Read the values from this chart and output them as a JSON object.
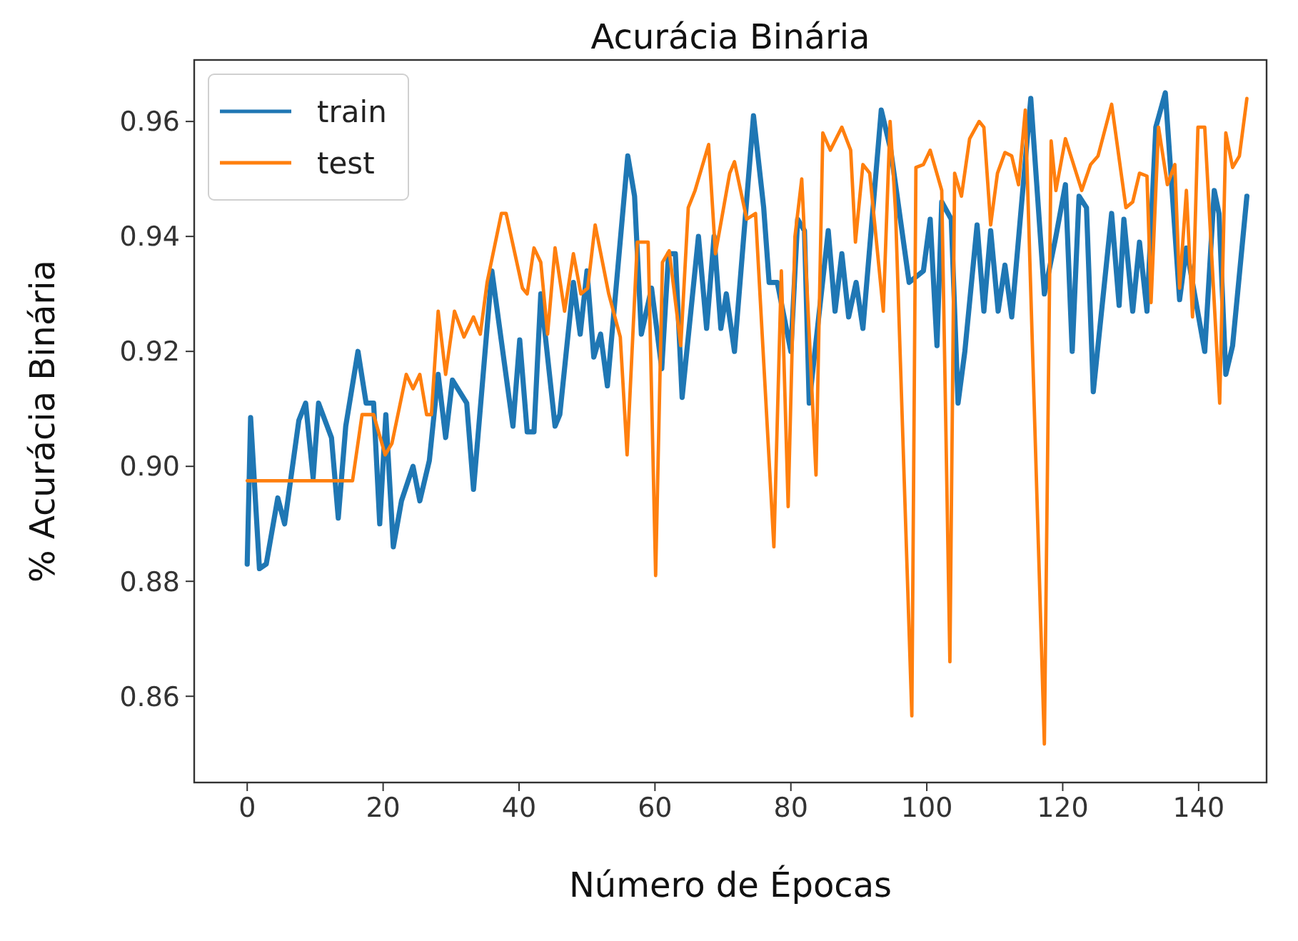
{
  "chart_data": {
    "type": "line",
    "title": "Acurácia Binária",
    "xlabel": "Número de Épocas",
    "ylabel": "% Acurácia Binária",
    "xlim": [
      -7.8,
      150
    ],
    "xticks": [
      0,
      20,
      40,
      60,
      80,
      100,
      120,
      140
    ],
    "ylim": [
      0.845,
      0.9707
    ],
    "yticks": [
      {
        "value": 0.86,
        "label": "0.86"
      },
      {
        "value": 0.88,
        "label": "0.88"
      },
      {
        "value": 0.9,
        "label": "0.90"
      },
      {
        "value": 0.92,
        "label": "0.92"
      },
      {
        "value": 0.94,
        "label": "0.94"
      },
      {
        "value": 0.96,
        "label": "0.96"
      }
    ],
    "grid": false,
    "legend": "top left",
    "series": [
      {
        "name": "train",
        "color": "#1f77b4",
        "x": [
          0,
          0.5,
          1.8,
          2.8,
          4.5,
          5.5,
          7.6,
          8.6,
          9.7,
          10.5,
          12.4,
          13.4,
          14.5,
          16.3,
          17.5,
          18.6,
          19.5,
          20.4,
          21.5,
          22.7,
          24.4,
          25.4,
          26.8,
          28.1,
          29.2,
          30.2,
          32.3,
          33.3,
          36,
          39.1,
          40.1,
          41.2,
          42.2,
          43.2,
          45.3,
          46,
          48,
          49,
          50,
          51,
          52,
          53,
          56,
          57,
          58,
          59.5,
          61,
          62,
          63,
          64,
          66.4,
          67.6,
          68.7,
          69.7,
          70.5,
          71.7,
          74.5,
          76,
          76.8,
          78,
          80,
          81,
          82,
          82.7,
          85.5,
          86.5,
          87.5,
          88.5,
          89.6,
          90.6,
          93.3,
          94.7,
          97.4,
          99.5,
          100.5,
          101.5,
          102.2,
          103.6,
          104.6,
          105.6,
          107.4,
          108.4,
          109.4,
          110.5,
          111.5,
          112.5,
          115.3,
          117.3,
          119,
          120.4,
          121.4,
          122.4,
          123.5,
          124.5,
          127.2,
          128.3,
          129,
          130.3,
          131.3,
          132.4,
          133.7,
          135.1,
          137.2,
          138.2,
          140.9,
          142.3,
          143,
          144,
          145,
          147.1
        ],
        "values": [
          0.883,
          0.9085,
          0.8822,
          0.883,
          0.8945,
          0.89,
          0.908,
          0.911,
          0.898,
          0.911,
          0.905,
          0.891,
          0.907,
          0.92,
          0.911,
          0.911,
          0.89,
          0.909,
          0.886,
          0.894,
          0.9,
          0.894,
          0.901,
          0.916,
          0.905,
          0.915,
          0.911,
          0.896,
          0.934,
          0.907,
          0.922,
          0.906,
          0.906,
          0.93,
          0.907,
          0.909,
          0.932,
          0.923,
          0.934,
          0.919,
          0.923,
          0.914,
          0.954,
          0.947,
          0.923,
          0.931,
          0.917,
          0.937,
          0.937,
          0.912,
          0.94,
          0.924,
          0.94,
          0.924,
          0.93,
          0.92,
          0.961,
          0.945,
          0.932,
          0.932,
          0.92,
          0.943,
          0.941,
          0.911,
          0.941,
          0.927,
          0.937,
          0.926,
          0.932,
          0.924,
          0.962,
          0.955,
          0.932,
          0.934,
          0.943,
          0.921,
          0.946,
          0.943,
          0.911,
          0.92,
          0.942,
          0.927,
          0.941,
          0.927,
          0.935,
          0.926,
          0.964,
          0.93,
          0.94,
          0.949,
          0.92,
          0.947,
          0.945,
          0.913,
          0.944,
          0.928,
          0.943,
          0.927,
          0.939,
          0.927,
          0.959,
          0.965,
          0.929,
          0.938,
          0.92,
          0.948,
          0.944,
          0.916,
          0.921,
          0.947
        ]
      },
      {
        "name": "test",
        "color": "#ff7f0e",
        "x": [
          0,
          15.5,
          16.9,
          18.6,
          20.3,
          21.3,
          23.4,
          24.4,
          25.4,
          26.4,
          27.1,
          28.1,
          29.2,
          30.5,
          31.9,
          33.3,
          34.3,
          35.3,
          37.4,
          38.1,
          40.5,
          41.2,
          42.2,
          43.2,
          44.2,
          45.3,
          46.7,
          48,
          49.1,
          50.1,
          51.2,
          53.2,
          54.9,
          55.9,
          57.4,
          59,
          60.1,
          61.1,
          62.1,
          63.8,
          64.9,
          65.9,
          67.9,
          68.9,
          71,
          71.7,
          73.5,
          74.8,
          77.5,
          78.6,
          79.6,
          80.6,
          81.6,
          83.7,
          84.7,
          85.8,
          87.5,
          88.8,
          89.5,
          90.6,
          91.6,
          93.6,
          94.6,
          95.4,
          97.8,
          98.4,
          99.5,
          100.5,
          102.2,
          103.4,
          104.1,
          105.1,
          106.3,
          107.7,
          108.4,
          109.4,
          110.4,
          111.5,
          112.5,
          113.5,
          114.5,
          117.3,
          118.3,
          119,
          120.4,
          122.8,
          124.1,
          125.2,
          127.2,
          129.3,
          130.3,
          131.3,
          132.4,
          133,
          134.1,
          135.4,
          136.5,
          137.2,
          138.2,
          139.1,
          139.9,
          140.9,
          143.1,
          144,
          145,
          146,
          147.1
        ],
        "values": [
          0.8975,
          0.8975,
          0.909,
          0.909,
          0.902,
          0.904,
          0.916,
          0.9135,
          0.916,
          0.909,
          0.909,
          0.927,
          0.916,
          0.927,
          0.9225,
          0.926,
          0.923,
          0.932,
          0.944,
          0.944,
          0.931,
          0.93,
          0.938,
          0.9355,
          0.923,
          0.938,
          0.927,
          0.937,
          0.93,
          0.931,
          0.942,
          0.93,
          0.9225,
          0.902,
          0.939,
          0.939,
          0.881,
          0.9355,
          0.9375,
          0.921,
          0.945,
          0.948,
          0.956,
          0.937,
          0.951,
          0.953,
          0.943,
          0.944,
          0.886,
          0.934,
          0.893,
          0.94,
          0.95,
          0.8985,
          0.958,
          0.955,
          0.959,
          0.955,
          0.939,
          0.9525,
          0.951,
          0.927,
          0.96,
          0.9444,
          0.8566,
          0.952,
          0.9525,
          0.955,
          0.948,
          0.866,
          0.951,
          0.947,
          0.957,
          0.96,
          0.959,
          0.942,
          0.951,
          0.9546,
          0.954,
          0.949,
          0.962,
          0.8517,
          0.9566,
          0.948,
          0.957,
          0.948,
          0.9525,
          0.954,
          0.963,
          0.945,
          0.946,
          0.951,
          0.9505,
          0.9285,
          0.959,
          0.949,
          0.9525,
          0.931,
          0.948,
          0.926,
          0.959,
          0.959,
          0.911,
          0.958,
          0.952,
          0.954,
          0.964
        ]
      }
    ]
  }
}
